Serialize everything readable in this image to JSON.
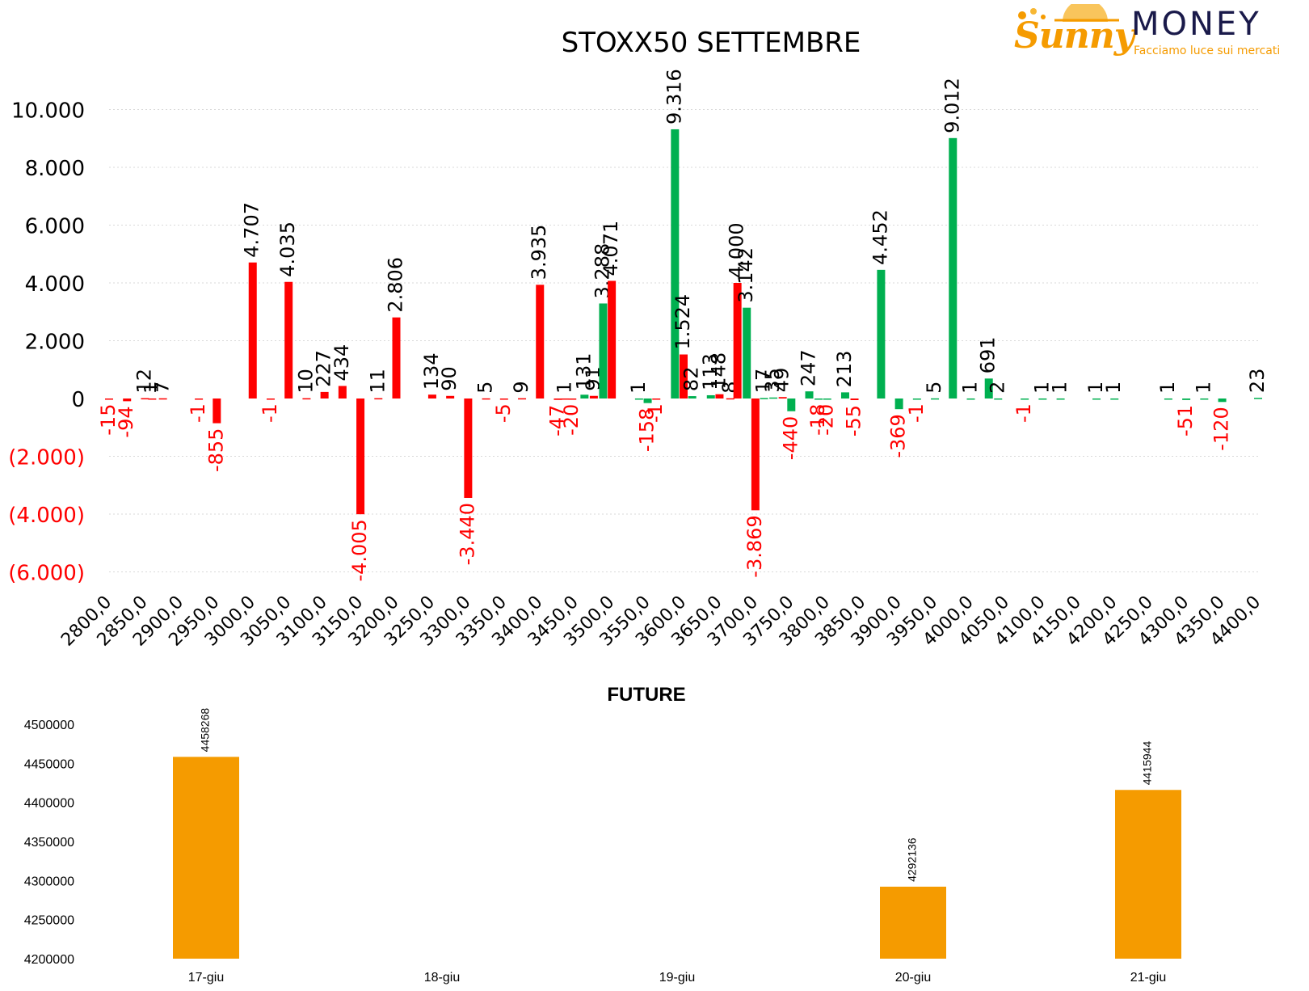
{
  "logo": {
    "brand_script": "Sunny",
    "brand_word": "MONEY",
    "tagline": "Facciamo luce sui mercati"
  },
  "colors": {
    "calls": "#00b050",
    "puts": "#ff0000",
    "future": "#f59b00",
    "label_positive": "#000000",
    "label_negative": "#ff0000"
  },
  "chart_data": [
    {
      "type": "bar",
      "title": "STOXX50 SETTEMBRE",
      "ylim": [
        -6000,
        11000
      ],
      "yticks": [
        -6000,
        -4000,
        -2000,
        0,
        2000,
        4000,
        6000,
        8000,
        10000
      ],
      "ytick_labels": [
        "(6.000)",
        "(4.000)",
        "(2.000)",
        "0",
        "2.000",
        "4.000",
        "6.000",
        "8.000",
        "10.000"
      ],
      "grid": true,
      "categories": [
        "2800,0",
        "2850,0",
        "2900,0",
        "2950,0",
        "3000,0",
        "3050,0",
        "3100,0",
        "3150,0",
        "3200,0",
        "3250,0",
        "3300,0",
        "3350,0",
        "3400,0",
        "3450,0",
        "3500,0",
        "3550,0",
        "3600,0",
        "3650,0",
        "3700,0",
        "3750,0",
        "3800,0",
        "3850,0",
        "3900,0",
        "3950,0",
        "4000,0",
        "4050,0",
        "4100,0",
        "4150,0",
        "4200,0",
        "4250,0",
        "4300,0",
        "4350,0",
        "4400,0"
      ],
      "bars": [
        {
          "x": 2800,
          "value": -15,
          "label": "-15",
          "series": "puts"
        },
        {
          "x": 2825,
          "value": -94,
          "label": "-94",
          "series": "puts"
        },
        {
          "x": 2850,
          "value": 12,
          "label": "12",
          "series": "puts"
        },
        {
          "x": 2860,
          "value": 1,
          "label": "1",
          "series": "puts"
        },
        {
          "x": 2875,
          "value": 7,
          "label": "7",
          "series": "puts"
        },
        {
          "x": 2925,
          "value": -1,
          "label": "-1",
          "series": "puts"
        },
        {
          "x": 2950,
          "value": -855,
          "label": "-855",
          "series": "puts"
        },
        {
          "x": 3000,
          "value": 4707,
          "label": "4.707",
          "series": "puts"
        },
        {
          "x": 3025,
          "value": -1,
          "label": "-1",
          "series": "puts"
        },
        {
          "x": 3050,
          "value": 4035,
          "label": "4.035",
          "series": "puts"
        },
        {
          "x": 3075,
          "value": 10,
          "label": "10",
          "series": "puts"
        },
        {
          "x": 3100,
          "value": 227,
          "label": "227",
          "series": "puts"
        },
        {
          "x": 3125,
          "value": 434,
          "label": "434",
          "series": "puts"
        },
        {
          "x": 3150,
          "value": -4005,
          "label": "-4.005",
          "series": "puts"
        },
        {
          "x": 3175,
          "value": 11,
          "label": "11",
          "series": "puts"
        },
        {
          "x": 3200,
          "value": 2806,
          "label": "2.806",
          "series": "puts"
        },
        {
          "x": 3250,
          "value": 134,
          "label": "134",
          "series": "puts"
        },
        {
          "x": 3275,
          "value": 90,
          "label": "90",
          "series": "puts"
        },
        {
          "x": 3300,
          "value": -3440,
          "label": "-3.440",
          "series": "puts"
        },
        {
          "x": 3325,
          "value": 5,
          "label": "5",
          "series": "puts"
        },
        {
          "x": 3350,
          "value": -5,
          "label": "-5",
          "series": "puts"
        },
        {
          "x": 3375,
          "value": 9,
          "label": "9",
          "series": "puts"
        },
        {
          "x": 3400,
          "value": 3935,
          "label": "3.935",
          "series": "puts"
        },
        {
          "x": 3425,
          "value": -47,
          "label": "-47",
          "series": "puts"
        },
        {
          "x": 3435,
          "value": 1,
          "label": "1",
          "series": "puts"
        },
        {
          "x": 3445,
          "value": -20,
          "label": "-20",
          "series": "puts"
        },
        {
          "x": 3462,
          "value": 131,
          "label": "131",
          "series": "calls"
        },
        {
          "x": 3475,
          "value": 91,
          "label": "91",
          "series": "puts"
        },
        {
          "x": 3488,
          "value": 3288,
          "label": "3.288",
          "series": "calls"
        },
        {
          "x": 3500,
          "value": 4071,
          "label": "4.071",
          "series": "puts"
        },
        {
          "x": 3538,
          "value": 1,
          "label": "1",
          "series": "calls"
        },
        {
          "x": 3550,
          "value": -158,
          "label": "-158",
          "series": "calls"
        },
        {
          "x": 3562,
          "value": -1,
          "label": "-1",
          "series": "puts"
        },
        {
          "x": 3588,
          "value": 9316,
          "label": "9.316",
          "series": "calls"
        },
        {
          "x": 3600,
          "value": 1524,
          "label": "1.524",
          "series": "puts"
        },
        {
          "x": 3612,
          "value": 82,
          "label": "82",
          "series": "calls"
        },
        {
          "x": 3638,
          "value": 113,
          "label": "113",
          "series": "calls"
        },
        {
          "x": 3650,
          "value": 148,
          "label": "148",
          "series": "puts"
        },
        {
          "x": 3665,
          "value": 8,
          "label": "8",
          "series": "puts"
        },
        {
          "x": 3675,
          "value": 4000,
          "label": "4.000",
          "series": "puts"
        },
        {
          "x": 3688,
          "value": 3142,
          "label": "3.142",
          "series": "calls"
        },
        {
          "x": 3700,
          "value": -3869,
          "label": "-3.869",
          "series": "puts"
        },
        {
          "x": 3712,
          "value": 17,
          "label": "17",
          "series": "calls"
        },
        {
          "x": 3725,
          "value": 35,
          "label": "35",
          "series": "calls"
        },
        {
          "x": 3738,
          "value": 49,
          "label": "49",
          "series": "puts"
        },
        {
          "x": 3750,
          "value": -440,
          "label": "-440",
          "series": "calls"
        },
        {
          "x": 3775,
          "value": 247,
          "label": "247",
          "series": "calls"
        },
        {
          "x": 3788,
          "value": -18,
          "label": "-18",
          "series": "calls"
        },
        {
          "x": 3800,
          "value": -20,
          "label": "-20",
          "series": "calls"
        },
        {
          "x": 3825,
          "value": 213,
          "label": "213",
          "series": "calls"
        },
        {
          "x": 3838,
          "value": -55,
          "label": "-55",
          "series": "puts"
        },
        {
          "x": 3875,
          "value": 4452,
          "label": "4.452",
          "series": "calls"
        },
        {
          "x": 3900,
          "value": -369,
          "label": "-369",
          "series": "calls"
        },
        {
          "x": 3925,
          "value": -1,
          "label": "-1",
          "series": "calls"
        },
        {
          "x": 3950,
          "value": 5,
          "label": "5",
          "series": "calls"
        },
        {
          "x": 3975,
          "value": 9012,
          "label": "9.012",
          "series": "calls"
        },
        {
          "x": 4000,
          "value": 1,
          "label": "1",
          "series": "calls"
        },
        {
          "x": 4025,
          "value": 691,
          "label": "691",
          "series": "calls"
        },
        {
          "x": 4038,
          "value": 2,
          "label": "2",
          "series": "calls"
        },
        {
          "x": 4075,
          "value": -1,
          "label": "-1",
          "series": "calls"
        },
        {
          "x": 4100,
          "value": 1,
          "label": "1",
          "series": "calls"
        },
        {
          "x": 4125,
          "value": 1,
          "label": "1",
          "series": "calls"
        },
        {
          "x": 4175,
          "value": 1,
          "label": "1",
          "series": "calls"
        },
        {
          "x": 4200,
          "value": 1,
          "label": "1",
          "series": "calls"
        },
        {
          "x": 4275,
          "value": 1,
          "label": "1",
          "series": "calls"
        },
        {
          "x": 4300,
          "value": -51,
          "label": "-51",
          "series": "calls"
        },
        {
          "x": 4325,
          "value": 1,
          "label": "1",
          "series": "calls"
        },
        {
          "x": 4350,
          "value": -120,
          "label": "-120",
          "series": "calls"
        },
        {
          "x": 4400,
          "value": 23,
          "label": "23",
          "series": "calls"
        }
      ]
    },
    {
      "type": "bar",
      "title": "FUTURE",
      "ylim": [
        4200000,
        4500000
      ],
      "yticks": [
        4200000,
        4250000,
        4300000,
        4350000,
        4400000,
        4450000,
        4500000
      ],
      "ytick_labels": [
        "4200000",
        "4250000",
        "4300000",
        "4350000",
        "4400000",
        "4450000",
        "4500000"
      ],
      "categories": [
        "17-giu",
        "18-giu",
        "19-giu",
        "20-giu",
        "21-giu"
      ],
      "values": [
        4458268,
        null,
        null,
        4292136,
        4415944
      ],
      "value_labels": [
        "4458268",
        "",
        "",
        "4292136",
        "4415944"
      ]
    }
  ]
}
